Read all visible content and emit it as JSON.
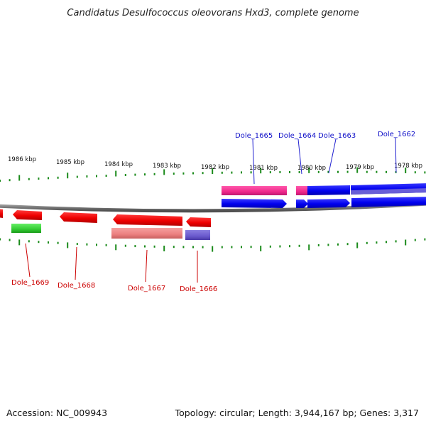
{
  "title": "Candidatus Desulfococcus oleovorans Hxd3, complete genome",
  "footer": {
    "accession": "Accession: NC_009943",
    "summary": "Topology: circular; Length: 3,944,167 bp; Genes: 3,317"
  },
  "scale_labels": [
    "1986 kbp",
    "1985 kbp",
    "1984 kbp",
    "1983 kbp",
    "1982 kbp",
    "1981 kbp",
    "1980 kbp",
    "1979 kbp",
    "1978 kbp"
  ],
  "gene_labels_top": [
    "Dole_1665",
    "Dole_1664",
    "Dole_1663",
    "Dole_1662"
  ],
  "gene_labels_bottom": [
    "Dole_1669",
    "Dole_1668",
    "Dole_1667",
    "Dole_1666"
  ],
  "colors": {
    "backbone": "#808080",
    "tick": "#1a8a1a",
    "forward_cds": "#0000ff",
    "reverse_cds": "#ff0000",
    "pink_feature": "#ff3399",
    "light_red_feature": "#f08080",
    "green_feature": "#33cc33",
    "purple_feature": "#6a5acd",
    "label_top": "#1010c8",
    "label_bottom": "#cc0000"
  }
}
